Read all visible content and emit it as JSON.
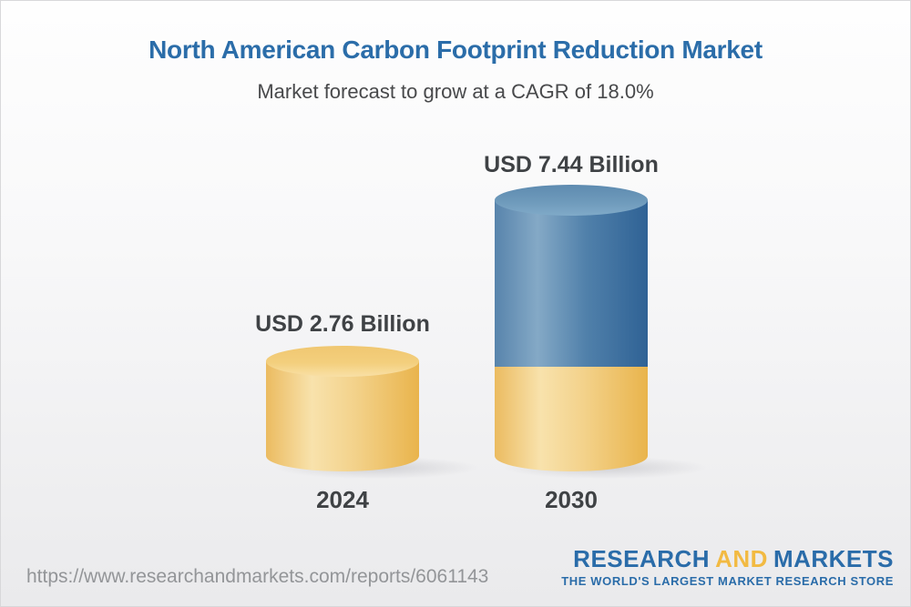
{
  "chart_data": {
    "type": "bar",
    "subtype": "3d-cylinder",
    "title": "North American Carbon Footprint Reduction Market",
    "subtitle": "Market forecast to grow at a CAGR of 18.0%",
    "categories": [
      "2024",
      "2030"
    ],
    "values": [
      2.76,
      7.44
    ],
    "value_labels": [
      "USD 2.76 Billion",
      "USD 7.44 Billion"
    ],
    "unit": "USD Billion",
    "cagr_percent": 18.0,
    "ylim": [
      0,
      8
    ],
    "grid": false,
    "legend_position": "none",
    "colors": {
      "bar_2024": "#F0C167",
      "bar_2030_base": "#F0C167",
      "bar_2030_growth": "#4C7CA8",
      "title_text": "#2B6DA9",
      "label_text": "#3F4245"
    }
  },
  "footer": {
    "url": "https://www.researchandmarkets.com/reports/6061143",
    "logo": {
      "word1": "RESEARCH",
      "word2": "AND",
      "word3": "MARKETS",
      "tagline": "THE WORLD'S LARGEST MARKET RESEARCH STORE",
      "brand_blue": "#2A6CA9",
      "brand_gold": "#F2BA42"
    }
  }
}
